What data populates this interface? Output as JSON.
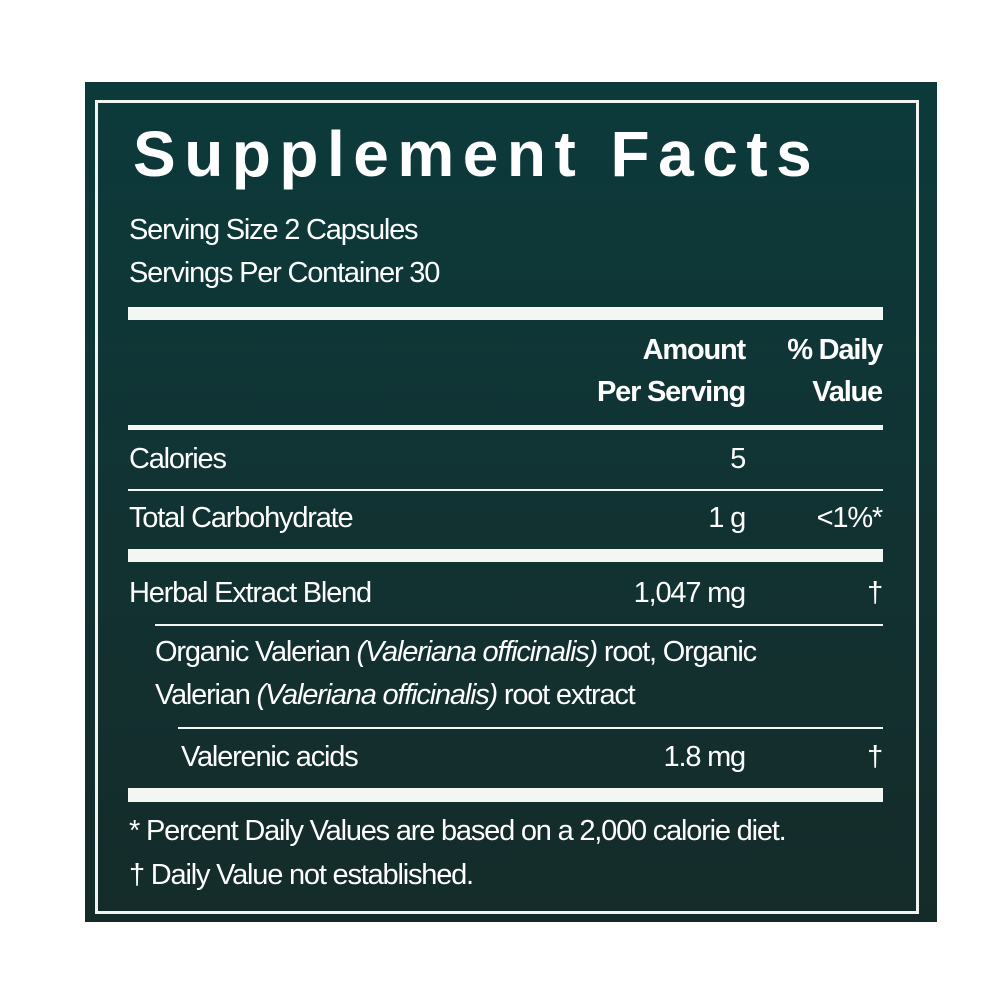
{
  "title": "Supplement Facts",
  "serving_size": "Serving Size 2 Capsules",
  "servings_per_container": "Servings Per Container 30",
  "header": {
    "amount_line1": "Amount",
    "amount_line2": "Per Serving",
    "dv_line1": "% Daily",
    "dv_line2": "Value"
  },
  "rows": [
    {
      "name": "Calories",
      "amount": "5",
      "dv": ""
    },
    {
      "name": "Total Carbohydrate",
      "amount": "1 g",
      "dv": "<1%*"
    },
    {
      "name": "Herbal Extract Blend",
      "amount": "1,047 mg",
      "dv": "†"
    }
  ],
  "blend_description": {
    "part1": "Organic Valerian ",
    "italic1": "(Valeriana officinalis)",
    "part2": " root, Organic",
    "part3": "Valerian ",
    "italic2": "(Valeriana officinalis)",
    "part4": " root extract"
  },
  "sub_row": {
    "name": "Valerenic acids",
    "amount": "1.8 mg",
    "dv": "†"
  },
  "footnotes": [
    "*  Percent Daily Values are based on a 2,000 calorie diet.",
    "† Daily Value not established."
  ],
  "colors": {
    "background_top": "#0c3a3b",
    "background_bottom": "#142b29",
    "text": "#ffffff"
  }
}
